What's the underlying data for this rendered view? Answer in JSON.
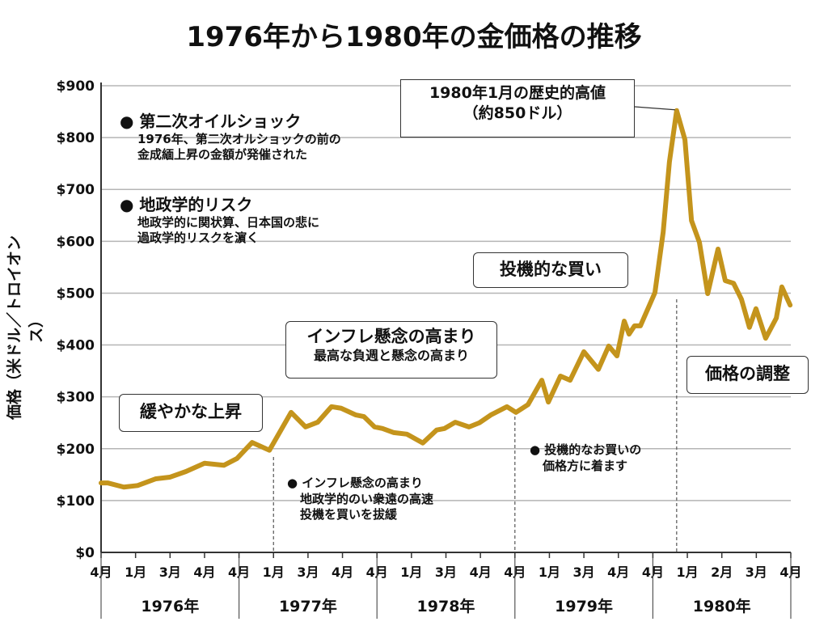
{
  "chart_data": {
    "type": "line",
    "title": "1976年から1980年の金価格の推移",
    "ylabel": "価格（米ドル／トロイオンス）",
    "xlabel": "",
    "ylim": [
      0,
      900
    ],
    "yticks": [
      "$0",
      "$100",
      "$200",
      "$300",
      "$400",
      "$500",
      "$600",
      "$700",
      "$800",
      "$900"
    ],
    "grid": true,
    "xticks": [
      "4月",
      "1月",
      "3月",
      "4月",
      "4月",
      "1月",
      "3月",
      "4月",
      "4月",
      "1月",
      "3月",
      "4月",
      "4月",
      "1月",
      "3月",
      "4月",
      "4月",
      "1月",
      "2月",
      "3月",
      "4月"
    ],
    "years": [
      "1976年",
      "1977年",
      "1978年",
      "1979年",
      "1980年"
    ],
    "line_color": "#C4941C",
    "series": [
      {
        "points": [
          [
            0,
            134
          ],
          [
            0.19,
            134
          ],
          [
            0.66,
            126
          ],
          [
            1.06,
            129
          ],
          [
            1.59,
            142
          ],
          [
            1.99,
            145
          ],
          [
            2.46,
            156
          ],
          [
            3.0,
            172
          ],
          [
            3.56,
            168
          ],
          [
            3.94,
            181
          ],
          [
            4.38,
            212
          ],
          [
            4.88,
            197
          ],
          [
            5.51,
            270
          ],
          [
            5.93,
            242
          ],
          [
            6.28,
            251
          ],
          [
            6.68,
            281
          ],
          [
            6.96,
            278
          ],
          [
            7.39,
            265
          ],
          [
            7.62,
            262
          ],
          [
            7.93,
            242
          ],
          [
            8.16,
            239
          ],
          [
            8.49,
            231
          ],
          [
            8.87,
            228
          ],
          [
            9.33,
            211
          ],
          [
            9.73,
            236
          ],
          [
            9.96,
            239
          ],
          [
            10.27,
            251
          ],
          [
            10.67,
            242
          ],
          [
            10.97,
            250
          ],
          [
            11.3,
            265
          ],
          [
            11.77,
            281
          ],
          [
            12.03,
            270
          ],
          [
            12.38,
            285
          ],
          [
            12.78,
            332
          ],
          [
            12.97,
            290
          ],
          [
            13.32,
            340
          ],
          [
            13.6,
            332
          ],
          [
            14.0,
            387
          ],
          [
            14.42,
            353
          ],
          [
            14.72,
            398
          ],
          [
            14.96,
            379
          ],
          [
            15.17,
            446
          ],
          [
            15.31,
            421
          ],
          [
            15.47,
            437
          ],
          [
            15.64,
            437
          ],
          [
            16.06,
            501
          ],
          [
            16.3,
            618
          ],
          [
            16.48,
            753
          ],
          [
            16.69,
            852
          ],
          [
            16.93,
            796
          ],
          [
            17.12,
            640
          ],
          [
            17.35,
            598
          ],
          [
            17.59,
            499
          ],
          [
            17.89,
            585
          ],
          [
            18.1,
            524
          ],
          [
            18.34,
            519
          ],
          [
            18.57,
            488
          ],
          [
            18.8,
            434
          ],
          [
            18.99,
            470
          ],
          [
            19.27,
            413
          ],
          [
            19.58,
            452
          ],
          [
            19.74,
            512
          ],
          [
            19.98,
            477
          ]
        ]
      }
    ],
    "dashed_markers_at_xtick": [
      5,
      12,
      16.69
    ],
    "annotations": {
      "peak": {
        "line1": "1980年1月の歴史的高値",
        "line2": "（約850ドル）"
      },
      "speculative": "投機的な買い",
      "inflation": {
        "line1": "インフレ懸念の高まり",
        "line2": "最高な負週と懸念の高まり"
      },
      "gradual": "緩やかな上昇",
      "adjust": "価格の調整",
      "oil": {
        "head": "● 第二次オイルショック",
        "line1": "1976年、第二次オルショックの前の",
        "line2": "金成緬上昇の金額が発催された"
      },
      "geo": {
        "head": "● 地政学的リスク",
        "line1": "地政学的に関状算、日本国の悲に",
        "line2": "過政学的リスクを濵く"
      },
      "inflation_note": {
        "line1": "● インフレ懸念の高まり",
        "line2": "地政学的のい衆遠の高速",
        "line3": "投機を買いを拔緩"
      },
      "spec_note": {
        "line1": "● 投機的なお買いの",
        "line2": "価格方に着ます"
      }
    }
  }
}
